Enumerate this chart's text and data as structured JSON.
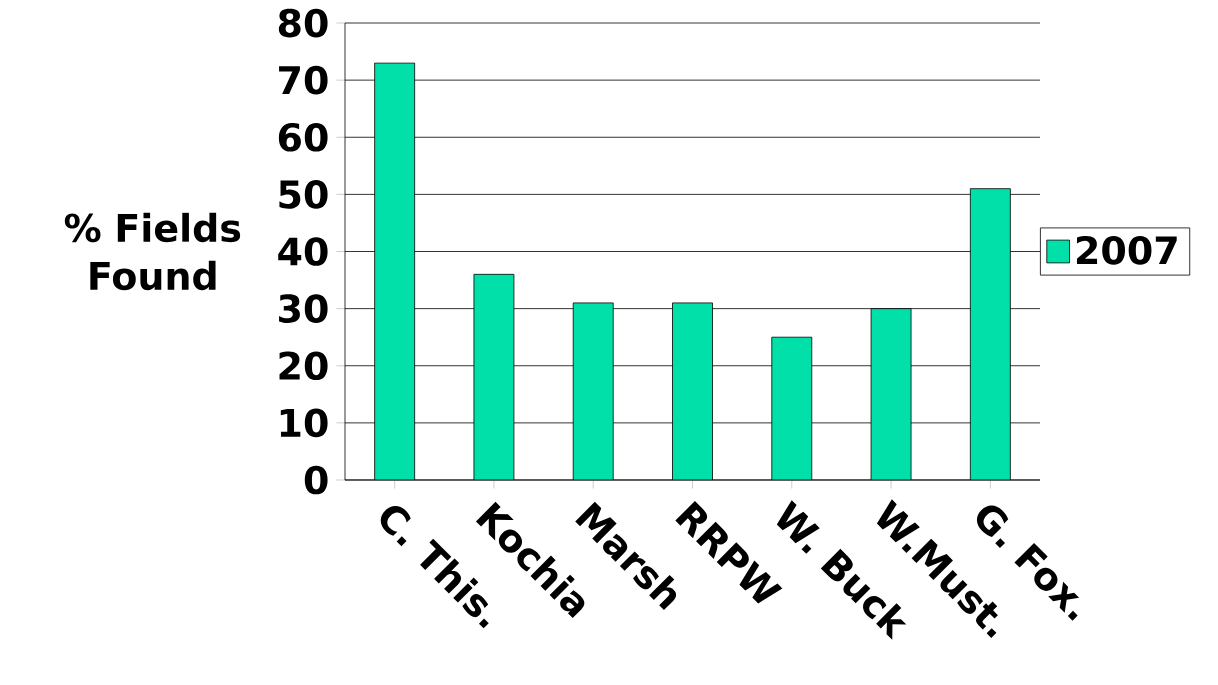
{
  "chart_data": {
    "type": "bar",
    "ylabel": "% Fields Found",
    "categories": [
      "C. This.",
      "Kochia",
      "Marsh",
      "RRPW",
      "W. Buck",
      "W.Must.",
      "G. Fox."
    ],
    "series": [
      {
        "name": "2007",
        "color": "#00e0a8",
        "values": [
          73,
          36,
          31,
          31,
          25,
          30,
          51
        ]
      }
    ],
    "ylim": [
      0,
      80
    ],
    "yticks": [
      0,
      10,
      20,
      30,
      40,
      50,
      60,
      70,
      80
    ],
    "grid": "y",
    "legend": "right"
  }
}
